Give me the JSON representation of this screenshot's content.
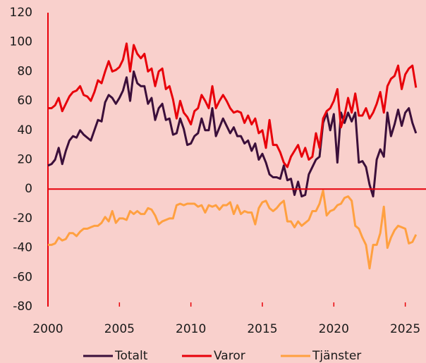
{
  "chart_data": {
    "type": "line",
    "x": [
      2000,
      2000.25,
      2000.5,
      2000.75,
      2001,
      2001.25,
      2001.5,
      2001.75,
      2002,
      2002.25,
      2002.5,
      2002.75,
      2003,
      2003.25,
      2003.5,
      2003.75,
      2004,
      2004.25,
      2004.5,
      2004.75,
      2005,
      2005.25,
      2005.5,
      2005.75,
      2006,
      2006.25,
      2006.5,
      2006.75,
      2007,
      2007.25,
      2007.5,
      2007.75,
      2008,
      2008.25,
      2008.5,
      2008.75,
      2009,
      2009.25,
      2009.5,
      2009.75,
      2010,
      2010.25,
      2010.5,
      2010.75,
      2011,
      2011.25,
      2011.5,
      2011.75,
      2012,
      2012.25,
      2012.5,
      2012.75,
      2013,
      2013.25,
      2013.5,
      2013.75,
      2014,
      2014.25,
      2014.5,
      2014.75,
      2015,
      2015.25,
      2015.5,
      2015.75,
      2016,
      2016.25,
      2016.5,
      2016.75,
      2017,
      2017.25,
      2017.5,
      2017.75,
      2018,
      2018.25,
      2018.5,
      2018.75,
      2019,
      2019.25,
      2019.5,
      2019.75,
      2020,
      2020.25,
      2020.5,
      2020.75,
      2021,
      2021.25,
      2021.5,
      2021.75,
      2022,
      2022.25,
      2022.5,
      2022.75,
      2023,
      2023.25,
      2023.5,
      2023.75,
      2024,
      2024.25,
      2024.5,
      2024.75,
      2025,
      2025.25,
      2025.5,
      2025.75
    ],
    "series": [
      {
        "name": "Totalt",
        "color": "#3b0f3a",
        "values": [
          16,
          17,
          20,
          28,
          17,
          26,
          33,
          36,
          35,
          40,
          37,
          35,
          33,
          40,
          47,
          46,
          59,
          64,
          62,
          58,
          62,
          67,
          76,
          60,
          80,
          72,
          70,
          70,
          58,
          62,
          47,
          55,
          58,
          47,
          48,
          37,
          38,
          48,
          41,
          30,
          31,
          36,
          38,
          48,
          40,
          40,
          55,
          36,
          42,
          48,
          43,
          38,
          42,
          36,
          36,
          31,
          33,
          26,
          31,
          20,
          24,
          18,
          10,
          8,
          8,
          7,
          16,
          6,
          7,
          -4,
          5,
          -5,
          -4,
          10,
          15,
          20,
          22,
          45,
          52,
          40,
          51,
          18,
          52,
          45,
          52,
          46,
          52,
          18,
          19,
          15,
          3,
          -5,
          20,
          27,
          22,
          52,
          36,
          44,
          54,
          43,
          52,
          55,
          45,
          38
        ]
      },
      {
        "name": "Varor",
        "color": "#e8000a",
        "values": [
          55,
          55,
          57,
          62,
          53,
          58,
          63,
          66,
          67,
          70,
          64,
          63,
          60,
          66,
          74,
          72,
          80,
          87,
          80,
          81,
          83,
          88,
          99,
          80,
          98,
          92,
          89,
          92,
          80,
          82,
          70,
          80,
          82,
          68,
          70,
          61,
          48,
          60,
          52,
          49,
          44,
          53,
          55,
          64,
          60,
          55,
          70,
          55,
          60,
          64,
          60,
          55,
          52,
          53,
          52,
          45,
          50,
          44,
          48,
          38,
          40,
          28,
          47,
          30,
          30,
          25,
          18,
          15,
          22,
          26,
          30,
          22,
          28,
          20,
          22,
          38,
          28,
          48,
          53,
          55,
          60,
          68,
          42,
          50,
          62,
          52,
          65,
          50,
          50,
          55,
          48,
          52,
          58,
          66,
          52,
          70,
          75,
          77,
          84,
          68,
          78,
          82,
          84,
          69
        ]
      },
      {
        "name": "Tjänster",
        "color": "#ffa040",
        "values": [
          -38,
          -38,
          -37,
          -33,
          -35,
          -34,
          -30,
          -30,
          -32,
          -29,
          -27,
          -27,
          -26,
          -25,
          -25,
          -23,
          -19,
          -22,
          -15,
          -23,
          -20,
          -20,
          -21,
          -15,
          -17,
          -15,
          -17,
          -17,
          -13,
          -14,
          -18,
          -24,
          -22,
          -21,
          -20,
          -20,
          -11,
          -10,
          -11,
          -10,
          -10,
          -10,
          -12,
          -11,
          -16,
          -11,
          -12,
          -11,
          -14,
          -11,
          -11,
          -9,
          -17,
          -11,
          -17,
          -15,
          -16,
          -16,
          -24,
          -13,
          -9,
          -8,
          -13,
          -15,
          -13,
          -10,
          -8,
          -22,
          -22,
          -26,
          -22,
          -25,
          -23,
          -21,
          -15,
          -15,
          -10,
          -1,
          -18,
          -15,
          -14,
          -11,
          -10,
          -6,
          -5,
          -8,
          -25,
          -27,
          -33,
          -38,
          -54,
          -38,
          -38,
          -30,
          -12,
          -40,
          -33,
          -28,
          -25,
          -26,
          -27,
          -37,
          -36,
          -31
        ]
      }
    ],
    "xlim": [
      2000,
      2026.4
    ],
    "xticks": [
      2000,
      2005,
      2010,
      2015,
      2020,
      2025
    ],
    "ylim": [
      -80,
      120
    ],
    "yticks": [
      -80,
      -60,
      -40,
      -20,
      0,
      20,
      40,
      60,
      80,
      100,
      120
    ]
  }
}
